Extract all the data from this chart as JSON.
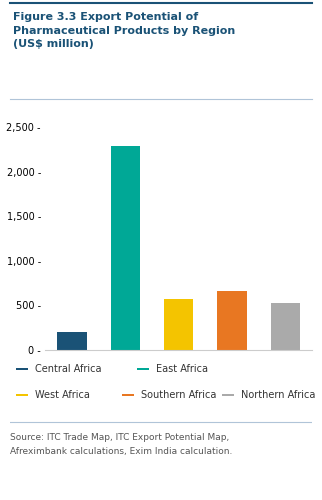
{
  "title_line1": "Figure 3.3 Export Potential of",
  "title_line2": "Pharmaceutical Products by Region",
  "title_line3": "(US$ million)",
  "categories": [
    "Central\nAfrica",
    "East\nAfrica",
    "West\nAfrica",
    "Southern\nAfrica",
    "Northern\nAfrica"
  ],
  "values": [
    200,
    2290,
    575,
    660,
    530
  ],
  "colors": [
    "#1a5276",
    "#00a896",
    "#f4c400",
    "#e87722",
    "#aaaaaa"
  ],
  "legend_labels": [
    "Central Africa",
    "East Africa",
    "West Africa",
    "Southern Africa",
    "Northern Africa"
  ],
  "ylim": [
    0,
    2750
  ],
  "yticks": [
    0,
    500,
    1000,
    1500,
    2000,
    2500
  ],
  "source_text": "Source: ITC Trade Map, ITC Export Potential Map,\nAfreximbank calculations, Exim India calculation.",
  "title_color": "#1a5276",
  "title_fontsize": 8.0,
  "tick_fontsize": 7.0,
  "source_fontsize": 6.5,
  "legend_fontsize": 7.0,
  "background_color": "#ffffff",
  "top_line_color": "#1a5276",
  "sep_line_color": "#b0c4d8"
}
